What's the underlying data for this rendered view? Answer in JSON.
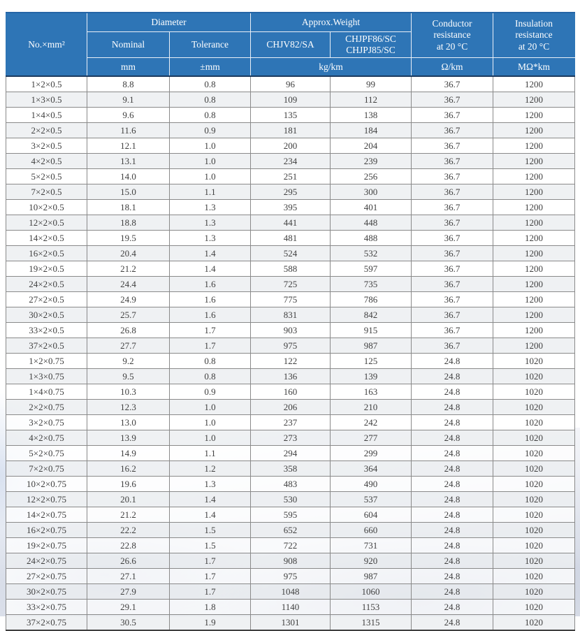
{
  "colors": {
    "header_bg": "#2e75b6",
    "header_text": "#ffffff",
    "header_grid": "#e9eff7",
    "heavy_line": "#1b3a5f",
    "body_grid": "#8a8a8a",
    "body_text": "#404040",
    "row_alt_bg": "#eceef1",
    "watermark_tint": "#c9d1e2"
  },
  "table": {
    "header": {
      "size_label": "No.×mm²",
      "groups": {
        "diameter": "Diameter",
        "weight": "Approx.Weight"
      },
      "subheaders": {
        "nominal": "Nominal",
        "tolerance": "Tolerance",
        "chjv": "CHJV82/SA",
        "chjpf": "CHJPF86/SC\nCHJPJ85/SC",
        "conductor": "Conductor\nresistance\nat 20 °C",
        "insulation": "Insulation\nresistance\nat 20 °C"
      },
      "units": {
        "nominal": "mm",
        "tolerance": "±mm",
        "weight": "kg/km",
        "conductor": "Ω/km",
        "insulation": "MΩ*km"
      }
    },
    "rows": [
      [
        "1×2×0.5",
        "8.8",
        "0.8",
        "96",
        "99",
        "36.7",
        "1200"
      ],
      [
        "1×3×0.5",
        "9.1",
        "0.8",
        "109",
        "112",
        "36.7",
        "1200"
      ],
      [
        "1×4×0.5",
        "9.6",
        "0.8",
        "135",
        "138",
        "36.7",
        "1200"
      ],
      [
        "2×2×0.5",
        "11.6",
        "0.9",
        "181",
        "184",
        "36.7",
        "1200"
      ],
      [
        "3×2×0.5",
        "12.1",
        "1.0",
        "200",
        "204",
        "36.7",
        "1200"
      ],
      [
        "4×2×0.5",
        "13.1",
        "1.0",
        "234",
        "239",
        "36.7",
        "1200"
      ],
      [
        "5×2×0.5",
        "14.0",
        "1.0",
        "251",
        "256",
        "36.7",
        "1200"
      ],
      [
        "7×2×0.5",
        "15.0",
        "1.1",
        "295",
        "300",
        "36.7",
        "1200"
      ],
      [
        "10×2×0.5",
        "18.1",
        "1.3",
        "395",
        "401",
        "36.7",
        "1200"
      ],
      [
        "12×2×0.5",
        "18.8",
        "1.3",
        "441",
        "448",
        "36.7",
        "1200"
      ],
      [
        "14×2×0.5",
        "19.5",
        "1.3",
        "481",
        "488",
        "36.7",
        "1200"
      ],
      [
        "16×2×0.5",
        "20.4",
        "1.4",
        "524",
        "532",
        "36.7",
        "1200"
      ],
      [
        "19×2×0.5",
        "21.2",
        "1.4",
        "588",
        "597",
        "36.7",
        "1200"
      ],
      [
        "24×2×0.5",
        "24.4",
        "1.6",
        "725",
        "735",
        "36.7",
        "1200"
      ],
      [
        "27×2×0.5",
        "24.9",
        "1.6",
        "775",
        "786",
        "36.7",
        "1200"
      ],
      [
        "30×2×0.5",
        "25.7",
        "1.6",
        "831",
        "842",
        "36.7",
        "1200"
      ],
      [
        "33×2×0.5",
        "26.8",
        "1.7",
        "903",
        "915",
        "36.7",
        "1200"
      ],
      [
        "37×2×0.5",
        "27.7",
        "1.7",
        "975",
        "987",
        "36.7",
        "1200"
      ],
      [
        "1×2×0.75",
        "9.2",
        "0.8",
        "122",
        "125",
        "24.8",
        "1020"
      ],
      [
        "1×3×0.75",
        "9.5",
        "0.8",
        "136",
        "139",
        "24.8",
        "1020"
      ],
      [
        "1×4×0.75",
        "10.3",
        "0.9",
        "160",
        "163",
        "24.8",
        "1020"
      ],
      [
        "2×2×0.75",
        "12.3",
        "1.0",
        "206",
        "210",
        "24.8",
        "1020"
      ],
      [
        "3×2×0.75",
        "13.0",
        "1.0",
        "237",
        "242",
        "24.8",
        "1020"
      ],
      [
        "4×2×0.75",
        "13.9",
        "1.0",
        "273",
        "277",
        "24.8",
        "1020"
      ],
      [
        "5×2×0.75",
        "14.9",
        "1.1",
        "294",
        "299",
        "24.8",
        "1020"
      ],
      [
        "7×2×0.75",
        "16.2",
        "1.2",
        "358",
        "364",
        "24.8",
        "1020"
      ],
      [
        "10×2×0.75",
        "19.6",
        "1.3",
        "483",
        "490",
        "24.8",
        "1020"
      ],
      [
        "12×2×0.75",
        "20.1",
        "1.4",
        "530",
        "537",
        "24.8",
        "1020"
      ],
      [
        "14×2×0.75",
        "21.2",
        "1.4",
        "595",
        "604",
        "24.8",
        "1020"
      ],
      [
        "16×2×0.75",
        "22.2",
        "1.5",
        "652",
        "660",
        "24.8",
        "1020"
      ],
      [
        "19×2×0.75",
        "22.8",
        "1.5",
        "722",
        "731",
        "24.8",
        "1020"
      ],
      [
        "24×2×0.75",
        "26.6",
        "1.7",
        "908",
        "920",
        "24.8",
        "1020"
      ],
      [
        "27×2×0.75",
        "27.1",
        "1.7",
        "975",
        "987",
        "24.8",
        "1020"
      ],
      [
        "30×2×0.75",
        "27.9",
        "1.7",
        "1048",
        "1060",
        "24.8",
        "1020"
      ],
      [
        "33×2×0.75",
        "29.1",
        "1.8",
        "1140",
        "1153",
        "24.8",
        "1020"
      ],
      [
        "37×2×0.75",
        "30.5",
        "1.9",
        "1301",
        "1315",
        "24.8",
        "1020"
      ]
    ]
  }
}
